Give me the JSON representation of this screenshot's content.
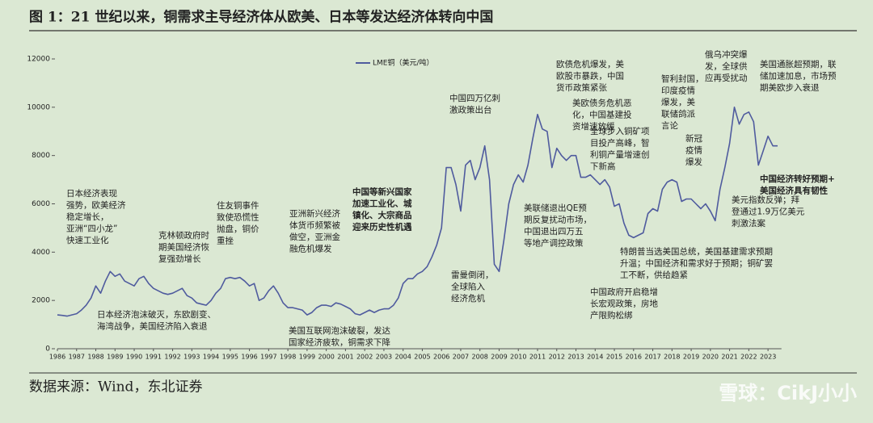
{
  "chart_data": {
    "type": "line",
    "title": "图 1：21 世纪以来，铜需求主导经济体从欧美、日本等发达经济体转向中国",
    "source": "数据来源：Wind，东北证券",
    "watermark": "雪球：CikJ小小",
    "xlim": [
      1986,
      2023.7
    ],
    "ylim": [
      0,
      12000
    ],
    "yticks": [
      0,
      2000,
      4000,
      6000,
      8000,
      10000,
      12000
    ],
    "xticks": [
      1986,
      1987,
      1988,
      1989,
      1990,
      1991,
      1992,
      1993,
      1994,
      1995,
      1996,
      1997,
      1998,
      1999,
      2000,
      2001,
      2002,
      2003,
      2004,
      2005,
      2006,
      2007,
      2008,
      2009,
      2010,
      2011,
      2012,
      2013,
      2014,
      2015,
      2016,
      2017,
      2018,
      2019,
      2020,
      2021,
      2022,
      2023
    ],
    "series": [
      {
        "name": "LME铜（美元/吨）",
        "color": "#4f5b9e",
        "x": [
          1986,
          1986.25,
          1986.5,
          1986.75,
          1987,
          1987.25,
          1987.5,
          1987.75,
          1988,
          1988.25,
          1988.5,
          1988.75,
          1989,
          1989.25,
          1989.5,
          1989.75,
          1990,
          1990.25,
          1990.5,
          1990.75,
          1991,
          1991.25,
          1991.5,
          1991.75,
          1992,
          1992.25,
          1992.5,
          1992.75,
          1993,
          1993.25,
          1993.5,
          1993.75,
          1994,
          1994.25,
          1994.5,
          1994.75,
          1995,
          1995.25,
          1995.5,
          1995.75,
          1996,
          1996.25,
          1996.5,
          1996.75,
          1997,
          1997.25,
          1997.5,
          1997.75,
          1998,
          1998.25,
          1998.5,
          1998.75,
          1999,
          1999.25,
          1999.5,
          1999.75,
          2000,
          2000.25,
          2000.5,
          2000.75,
          2001,
          2001.25,
          2001.5,
          2001.75,
          2002,
          2002.25,
          2002.5,
          2002.75,
          2003,
          2003.25,
          2003.5,
          2003.75,
          2004,
          2004.25,
          2004.5,
          2004.75,
          2005,
          2005.25,
          2005.5,
          2005.75,
          2006,
          2006.25,
          2006.5,
          2006.75,
          2007,
          2007.25,
          2007.5,
          2007.75,
          2008,
          2008.25,
          2008.5,
          2008.75,
          2009,
          2009.25,
          2009.5,
          2009.75,
          2010,
          2010.25,
          2010.5,
          2010.75,
          2011,
          2011.25,
          2011.5,
          2011.75,
          2012,
          2012.25,
          2012.5,
          2012.75,
          2013,
          2013.25,
          2013.5,
          2013.75,
          2014,
          2014.25,
          2014.5,
          2014.75,
          2015,
          2015.25,
          2015.5,
          2015.75,
          2016,
          2016.25,
          2016.5,
          2016.75,
          2017,
          2017.25,
          2017.5,
          2017.75,
          2018,
          2018.25,
          2018.5,
          2018.75,
          2019,
          2019.25,
          2019.5,
          2019.75,
          2020,
          2020.25,
          2020.5,
          2020.75,
          2021,
          2021.25,
          2021.5,
          2021.75,
          2022,
          2022.25,
          2022.5,
          2022.75,
          2023,
          2023.25,
          2023.5
        ],
        "values": [
          1400,
          1380,
          1350,
          1400,
          1450,
          1600,
          1800,
          2100,
          2600,
          2300,
          2800,
          3200,
          3000,
          3100,
          2800,
          2700,
          2600,
          2900,
          3000,
          2700,
          2500,
          2400,
          2300,
          2250,
          2300,
          2400,
          2500,
          2200,
          2100,
          1900,
          1850,
          1800,
          2000,
          2300,
          2500,
          2900,
          2950,
          2900,
          2950,
          2800,
          2600,
          2700,
          2000,
          2100,
          2400,
          2600,
          2300,
          1900,
          1700,
          1700,
          1650,
          1600,
          1400,
          1500,
          1700,
          1800,
          1800,
          1750,
          1900,
          1850,
          1750,
          1650,
          1450,
          1400,
          1500,
          1600,
          1500,
          1600,
          1650,
          1650,
          1800,
          2100,
          2700,
          2900,
          2900,
          3100,
          3200,
          3400,
          3800,
          4300,
          5000,
          7500,
          7500,
          6800,
          5700,
          7600,
          7800,
          7000,
          7500,
          8400,
          7000,
          3500,
          3200,
          4500,
          6000,
          6800,
          7200,
          6900,
          7600,
          8700,
          9700,
          9100,
          9000,
          7500,
          8300,
          8000,
          7800,
          8000,
          8000,
          7100,
          7100,
          7200,
          7000,
          6800,
          7000,
          6700,
          5900,
          6000,
          5200,
          4700,
          4600,
          4700,
          4800,
          5600,
          5800,
          5700,
          6600,
          6900,
          7000,
          6900,
          6100,
          6200,
          6200,
          6000,
          5800,
          6000,
          5700,
          5300,
          6600,
          7500,
          8500,
          10000,
          9300,
          9700,
          9800,
          9400,
          7600,
          8200,
          8800,
          8400,
          8400
        ]
      }
    ],
    "annotations": [
      [
        "日本经济表现",
        "强势，欧美经济",
        "稳定增长，",
        "亚洲“四小龙”",
        "快速工业化"
      ],
      [
        "克林顿政府时",
        "期美国经济恢",
        "复强劲增长"
      ],
      [
        "住友铜事件",
        "致使恐慌性",
        "抛盘，铜价",
        "重挫"
      ],
      [
        "亚洲新兴经济",
        "体货币频繁被",
        "做空，亚洲金",
        "融危机爆发"
      ],
      [
        "中国等新兴国家",
        "加速工业化、城",
        "镇化、大宗商品",
        "迎来历史性机遇"
      ],
      [
        "中国四万亿刺",
        "激政策出台"
      ],
      [
        "雷曼倒闭，",
        "全球陷入",
        "经济危机"
      ],
      [
        "日本经济泡沫破灭，东欧剧变、",
        "海湾战争，美国经济陷入衰退"
      ],
      [
        "美国互联网泡沫破裂，发达",
        "国家经济疲软，铜需求下降"
      ],
      [
        "欧债危机爆发，美",
        "欧股市暴跌，中国",
        "货币政策紧张"
      ],
      [
        "美欧债务危机恶",
        "化，中国基建投",
        "资增速放缓"
      ],
      [
        "全球步入铜矿项",
        "目投产高峰，智",
        "利铜产量增速创",
        "下新高"
      ],
      [
        "美联储退出QE预",
        "期反复扰动市场，",
        "中国退出四万五",
        "等地产调控政策"
      ],
      [
        "中国政府开启稳增",
        "长宏观政策，房地",
        "产限购松绑"
      ],
      [
        "特朗普当选美国总统，美国基建需求预期",
        "升温；中国经济和需求好于预期；铜矿罢",
        "工不断，供给趋紧"
      ],
      [
        "智利封国，",
        "印度疫情",
        "爆发，美",
        "联储鸽派",
        "言论"
      ],
      [
        "新冠",
        "疫情",
        "爆发"
      ],
      [
        "俄乌冲突爆",
        "发，全球供",
        "应再受扰动"
      ],
      [
        "美国通胀超预期，联",
        "储加速加息，市场预",
        "期美欧步入衰退"
      ],
      [
        "中国经济转好预期+",
        "美国经济具有韧性"
      ],
      [
        "美元指数反弹；拜",
        "登通过1.9万亿美元",
        "刺激法案"
      ]
    ]
  }
}
